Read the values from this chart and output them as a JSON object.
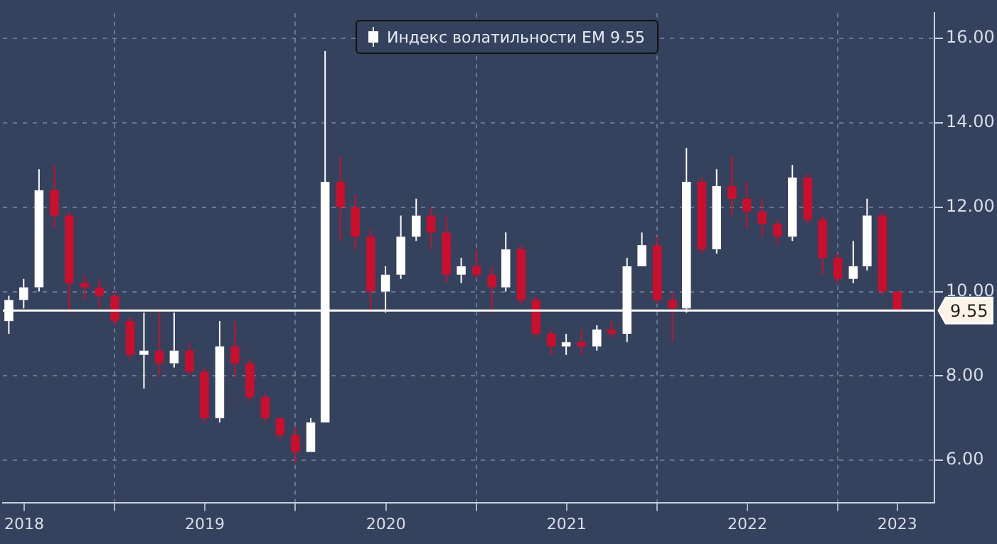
{
  "chart_data": {
    "type": "candlestick",
    "x": [
      "2018-06",
      "2018-07",
      "2018-08",
      "2018-09",
      "2018-10",
      "2018-11",
      "2018-12",
      "2019-01",
      "2019-02",
      "2019-03",
      "2019-04",
      "2019-05",
      "2019-06",
      "2019-07",
      "2019-08",
      "2019-09",
      "2019-10",
      "2019-11",
      "2019-12",
      "2020-01",
      "2020-02",
      "2020-03",
      "2020-04",
      "2020-05",
      "2020-06",
      "2020-07",
      "2020-08",
      "2020-09",
      "2020-10",
      "2020-11",
      "2020-12",
      "2021-01",
      "2021-02",
      "2021-03",
      "2021-04",
      "2021-05",
      "2021-06",
      "2021-07",
      "2021-08",
      "2021-09",
      "2021-10",
      "2021-11",
      "2021-12",
      "2022-01",
      "2022-02",
      "2022-03",
      "2022-04",
      "2022-05",
      "2022-06",
      "2022-07",
      "2022-08",
      "2022-09",
      "2022-10",
      "2022-11",
      "2022-12",
      "2023-01",
      "2023-02",
      "2023-03",
      "2023-04",
      "2023-05"
    ],
    "series": [
      {
        "name": "Индекс волатильности EM 9.55",
        "color": "#ffffff",
        "colors": [
          "#ffffff",
          "#ffffff",
          "#ffffff",
          "#c8102e",
          "#c8102e",
          "#c8102e",
          "#c8102e",
          "#c8102e",
          "#c8102e",
          "#ffffff",
          "#c8102e",
          "#ffffff",
          "#c8102e",
          "#c8102e",
          "#ffffff",
          "#c8102e",
          "#c8102e",
          "#c8102e",
          "#c8102e",
          "#c8102e",
          "#ffffff",
          "#ffffff",
          "#c8102e",
          "#c8102e",
          "#c8102e",
          "#ffffff",
          "#ffffff",
          "#ffffff",
          "#c8102e",
          "#c8102e",
          "#ffffff",
          "#c8102e",
          "#c8102e",
          "#ffffff",
          "#c8102e",
          "#c8102e",
          "#c8102e",
          "#ffffff",
          "#c8102e",
          "#ffffff",
          "#c8102e",
          "#ffffff",
          "#ffffff",
          "#c8102e",
          "#c8102e",
          "#ffffff",
          "#c8102e",
          "#ffffff",
          "#c8102e",
          "#c8102e",
          "#c8102e",
          "#c8102e",
          "#ffffff",
          "#c8102e",
          "#c8102e",
          "#c8102e",
          "#ffffff",
          "#ffffff",
          "#c8102e",
          "#c8102e"
        ],
        "ohlc": [
          [
            9.3,
            9.9,
            9.0,
            9.8
          ],
          [
            9.8,
            10.3,
            9.6,
            10.1
          ],
          [
            10.1,
            12.9,
            10.0,
            12.4
          ],
          [
            12.4,
            13.0,
            11.5,
            11.8
          ],
          [
            11.8,
            11.9,
            9.5,
            10.2
          ],
          [
            10.2,
            10.4,
            9.8,
            10.1
          ],
          [
            10.1,
            10.3,
            9.6,
            9.9
          ],
          [
            9.9,
            10.0,
            9.2,
            9.3
          ],
          [
            9.3,
            9.4,
            8.4,
            8.5
          ],
          [
            8.5,
            9.5,
            7.7,
            8.6
          ],
          [
            8.6,
            9.5,
            8.0,
            8.3
          ],
          [
            8.3,
            9.5,
            8.2,
            8.6
          ],
          [
            8.6,
            8.8,
            8.0,
            8.1
          ],
          [
            8.1,
            8.2,
            6.9,
            7.0
          ],
          [
            7.0,
            9.3,
            6.9,
            8.7
          ],
          [
            8.7,
            9.3,
            8.0,
            8.3
          ],
          [
            8.3,
            8.4,
            7.4,
            7.5
          ],
          [
            7.5,
            7.6,
            6.9,
            7.0
          ],
          [
            7.0,
            7.0,
            6.5,
            6.6
          ],
          [
            6.6,
            6.8,
            5.95,
            6.2
          ],
          [
            6.2,
            7.0,
            6.2,
            6.9
          ],
          [
            6.9,
            15.7,
            6.9,
            12.6
          ],
          [
            12.6,
            13.2,
            11.2,
            12.0
          ],
          [
            12.0,
            12.3,
            11.0,
            11.3
          ],
          [
            11.3,
            11.5,
            9.5,
            10.0
          ],
          [
            10.0,
            10.6,
            9.5,
            10.4
          ],
          [
            10.4,
            11.8,
            10.3,
            11.3
          ],
          [
            11.3,
            12.2,
            11.2,
            11.8
          ],
          [
            11.8,
            12.0,
            11.0,
            11.4
          ],
          [
            11.4,
            11.8,
            10.2,
            10.4
          ],
          [
            10.4,
            10.8,
            10.2,
            10.6
          ],
          [
            10.6,
            11.0,
            10.3,
            10.4
          ],
          [
            10.4,
            10.6,
            9.5,
            10.1
          ],
          [
            10.1,
            11.4,
            10.0,
            11.0
          ],
          [
            11.0,
            11.1,
            9.7,
            9.8
          ],
          [
            9.8,
            9.9,
            8.9,
            9.0
          ],
          [
            9.0,
            9.1,
            8.5,
            8.7
          ],
          [
            8.7,
            9.0,
            8.5,
            8.8
          ],
          [
            8.8,
            9.1,
            8.5,
            8.7
          ],
          [
            8.7,
            9.2,
            8.6,
            9.1
          ],
          [
            9.1,
            9.3,
            8.9,
            9.0
          ],
          [
            9.0,
            10.8,
            8.8,
            10.6
          ],
          [
            10.6,
            11.4,
            10.6,
            11.1
          ],
          [
            11.1,
            11.3,
            9.7,
            9.8
          ],
          [
            9.8,
            10.0,
            8.8,
            9.6
          ],
          [
            9.6,
            13.4,
            9.5,
            12.6
          ],
          [
            12.6,
            12.7,
            10.9,
            11.0
          ],
          [
            11.0,
            12.9,
            10.9,
            12.5
          ],
          [
            12.5,
            13.2,
            11.8,
            12.2
          ],
          [
            12.2,
            12.6,
            11.5,
            11.9
          ],
          [
            11.9,
            12.2,
            11.3,
            11.6
          ],
          [
            11.6,
            11.7,
            11.1,
            11.3
          ],
          [
            11.3,
            13.0,
            11.2,
            12.7
          ],
          [
            12.7,
            12.8,
            11.6,
            11.7
          ],
          [
            11.7,
            11.8,
            10.4,
            10.8
          ],
          [
            10.8,
            10.9,
            10.2,
            10.3
          ],
          [
            10.3,
            11.2,
            10.2,
            10.6
          ],
          [
            10.6,
            12.2,
            10.5,
            11.8
          ],
          [
            11.8,
            11.9,
            9.9,
            10.0
          ],
          [
            10.0,
            10.0,
            9.5,
            9.55
          ]
        ]
      }
    ],
    "xlim": [
      "2018-05-20",
      "2023-07-15"
    ],
    "xticks": [
      {
        "value": "2018-07-02",
        "label": "2018"
      },
      {
        "value": "2019-01-01",
        "label": null
      },
      {
        "value": "2019-07-02",
        "label": "2019"
      },
      {
        "value": "2020-01-01",
        "label": null
      },
      {
        "value": "2020-07-02",
        "label": "2020"
      },
      {
        "value": "2021-01-01",
        "label": null
      },
      {
        "value": "2021-07-02",
        "label": "2021"
      },
      {
        "value": "2022-01-01",
        "label": null
      },
      {
        "value": "2022-07-02",
        "label": "2022"
      },
      {
        "value": "2023-01-01",
        "label": null
      },
      {
        "value": "2023-05-01",
        "label": "2023"
      }
    ],
    "ylim": [
      5,
      16.6
    ],
    "yticks": [
      {
        "value": 6,
        "label": "6.00"
      },
      {
        "value": 8,
        "label": "8.00"
      },
      {
        "value": 10,
        "label": "10.00"
      },
      {
        "value": 12,
        "label": "12.00"
      },
      {
        "value": 14,
        "label": "14.00"
      },
      {
        "value": 16,
        "label": "16.00"
      }
    ],
    "ref_lines": [
      {
        "axis": "y",
        "value": 9.55,
        "label": "9.55",
        "color": "#ffffff"
      }
    ],
    "grid": true,
    "legend": "top"
  }
}
